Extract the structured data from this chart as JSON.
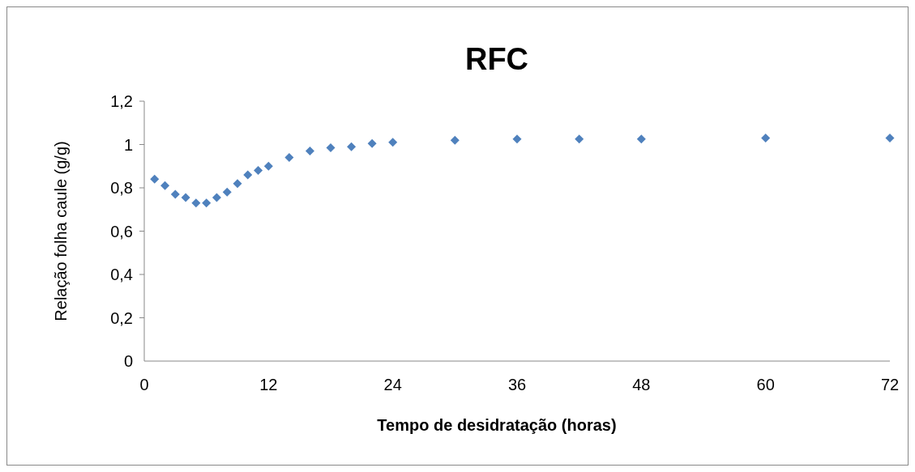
{
  "chart_data": {
    "type": "scatter",
    "title": "RFC",
    "xlabel": "Tempo de desidratação (horas)",
    "ylabel": "Relação folha caule (g/g)",
    "x": [
      1,
      2,
      3,
      4,
      5,
      6,
      7,
      8,
      9,
      10,
      11,
      12,
      14,
      16,
      18,
      20,
      22,
      24,
      30,
      36,
      42,
      48,
      60,
      72
    ],
    "series": [
      {
        "color": "#4f81bd",
        "values": [
          0.84,
          0.81,
          0.77,
          0.755,
          0.73,
          0.73,
          0.755,
          0.78,
          0.82,
          0.86,
          0.88,
          0.9,
          0.94,
          0.97,
          0.985,
          0.99,
          1.005,
          1.01,
          1.02,
          1.025,
          1.025,
          1.025,
          1.03,
          1.03
        ]
      }
    ],
    "xlim": [
      0,
      72
    ],
    "xticks": [
      0,
      12,
      24,
      36,
      48,
      60,
      72
    ],
    "ylim": [
      0,
      1.2
    ],
    "yticks": [
      {
        "value": 0,
        "label": "0"
      },
      {
        "value": 0.2,
        "label": "0,2"
      },
      {
        "value": 0.4,
        "label": "0,4"
      },
      {
        "value": 0.6,
        "label": "0,6"
      },
      {
        "value": 0.8,
        "label": "0,8"
      },
      {
        "value": 1,
        "label": "1"
      },
      {
        "value": 1.2,
        "label": "1,2"
      }
    ],
    "grid": false,
    "marker": "diamond"
  }
}
